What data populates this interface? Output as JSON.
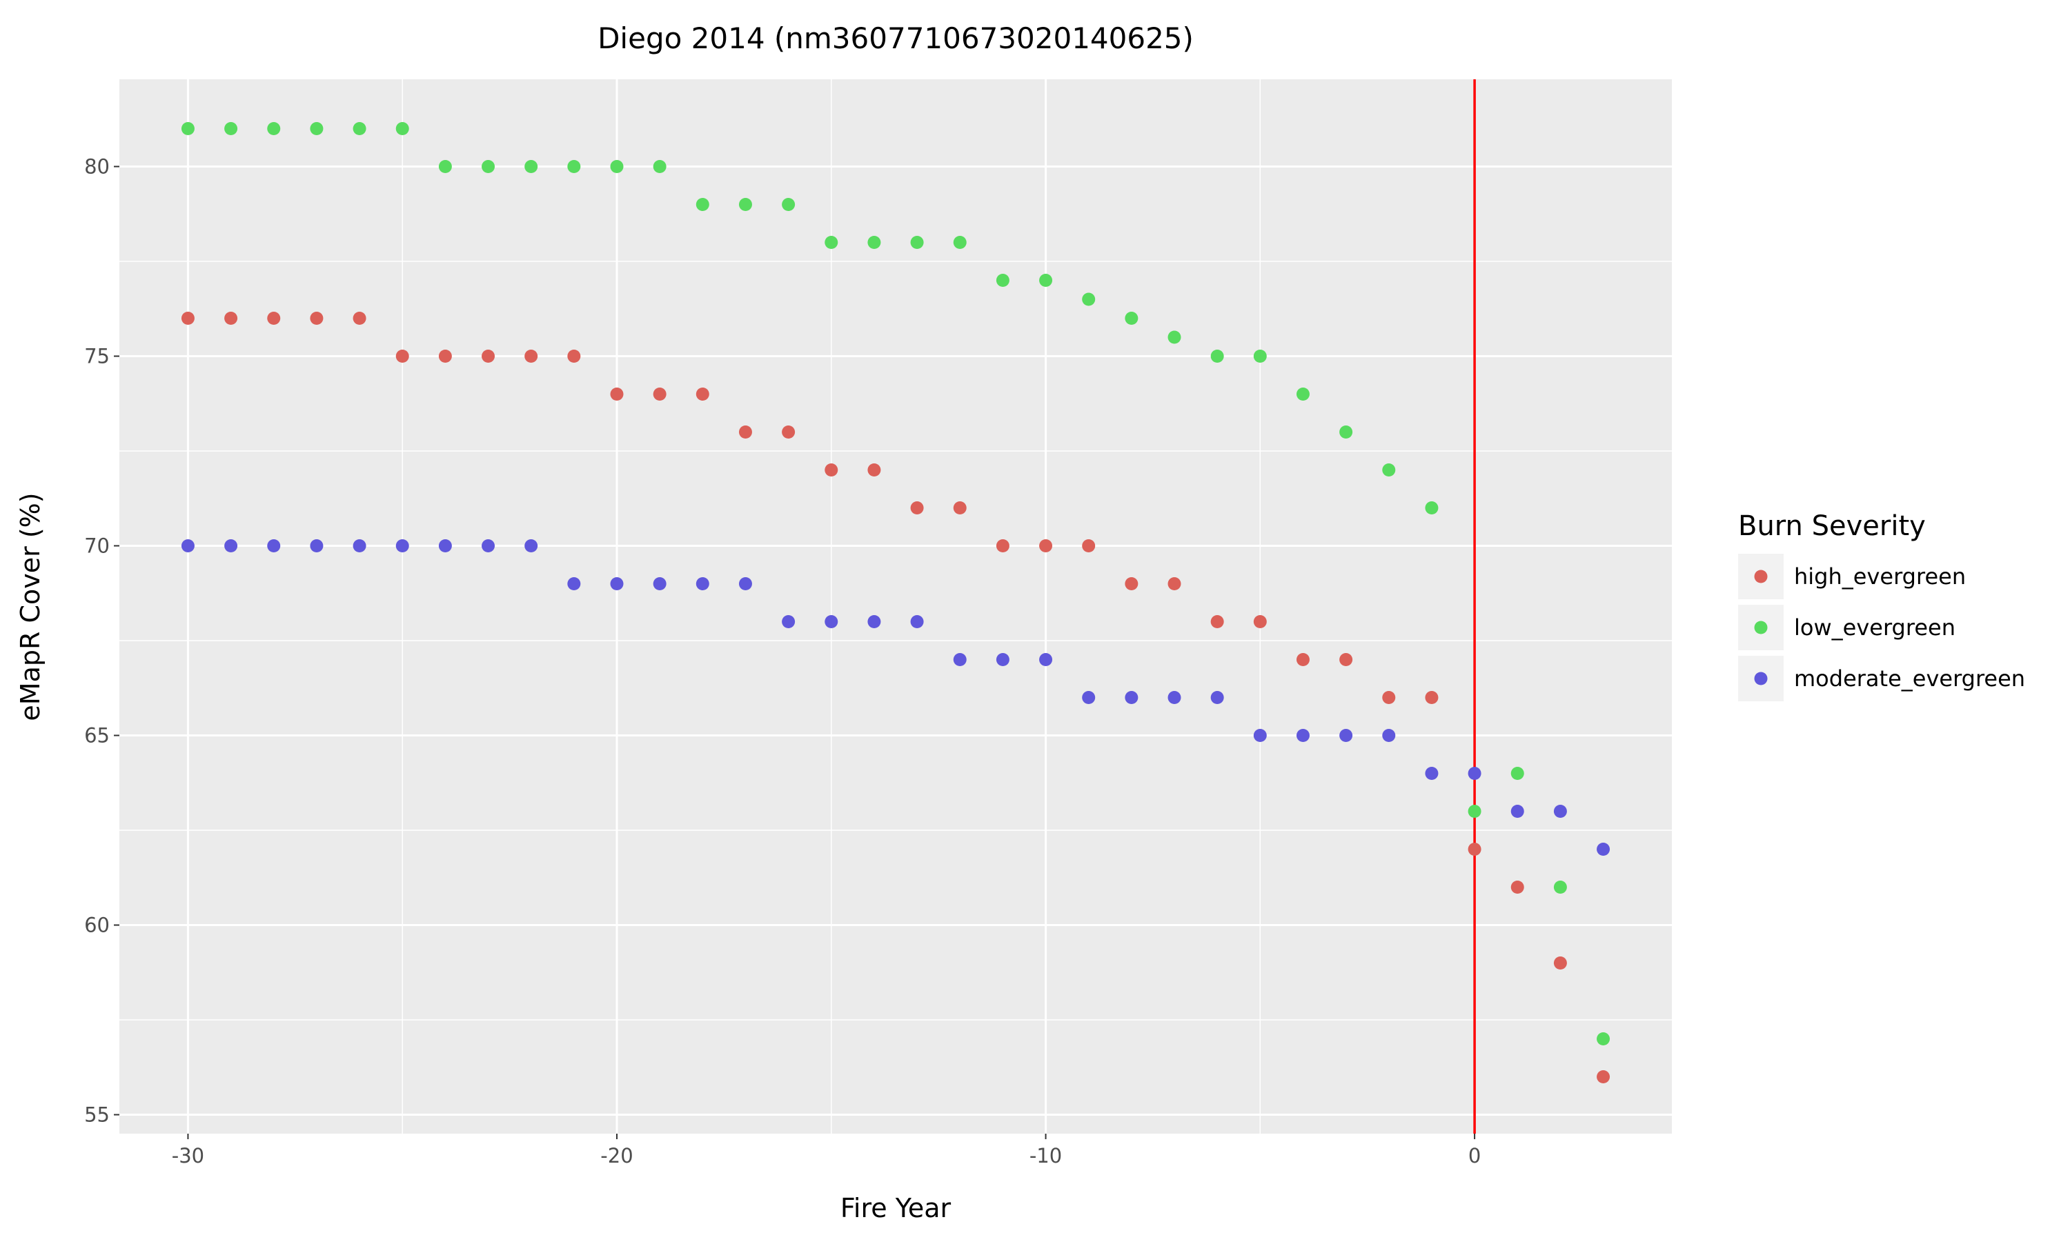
{
  "chart_data": {
    "type": "scatter",
    "title": "Diego 2014 (nm3607710673020140625)",
    "xlabel": "Fire Year",
    "ylabel": "eMapR Cover (%)",
    "xlim": [
      -31.6,
      4.6
    ],
    "ylim": [
      54.5,
      82.3
    ],
    "x_ticks": [
      -30,
      -20,
      -10,
      0
    ],
    "y_ticks": [
      55,
      60,
      65,
      70,
      75,
      80
    ],
    "grid": true,
    "legend": {
      "title": "Burn Severity",
      "placement": "right"
    },
    "reference_line": {
      "x": 0,
      "color": "#ff0000"
    },
    "x": [
      -30,
      -29,
      -28,
      -27,
      -26,
      -25,
      -24,
      -23,
      -22,
      -21,
      -20,
      -19,
      -18,
      -17,
      -16,
      -15,
      -14,
      -13,
      -12,
      -11,
      -10,
      -9,
      -8,
      -7,
      -6,
      -5,
      -4,
      -3,
      -2,
      -1,
      0,
      1,
      2,
      3
    ],
    "series": [
      {
        "name": "high_evergreen",
        "color": "#db5f57",
        "values": [
          76,
          76,
          76,
          76,
          76,
          75,
          75,
          75,
          75,
          75,
          74,
          74,
          74,
          73,
          73,
          72,
          72,
          71,
          71,
          70,
          70,
          70,
          69,
          69,
          68,
          68,
          67,
          67,
          66,
          66,
          62,
          61,
          59,
          56
        ]
      },
      {
        "name": "low_evergreen",
        "color": "#57db5e",
        "values": [
          81,
          81,
          81,
          81,
          81,
          81,
          80,
          80,
          80,
          80,
          80,
          80,
          79,
          79,
          79,
          78,
          78,
          78,
          78,
          77,
          77,
          76.5,
          76,
          75.5,
          75,
          75,
          74,
          73,
          72,
          71,
          63,
          64,
          61,
          57
        ]
      },
      {
        "name": "moderate_evergreen",
        "color": "#5f57db",
        "values": [
          70,
          70,
          70,
          70,
          70,
          70,
          70,
          70,
          70,
          69,
          69,
          69,
          69,
          69,
          68,
          68,
          68,
          68,
          67,
          67,
          67,
          66,
          66,
          66,
          66,
          65,
          65,
          65,
          65,
          64,
          64,
          63,
          63,
          62
        ]
      }
    ]
  }
}
